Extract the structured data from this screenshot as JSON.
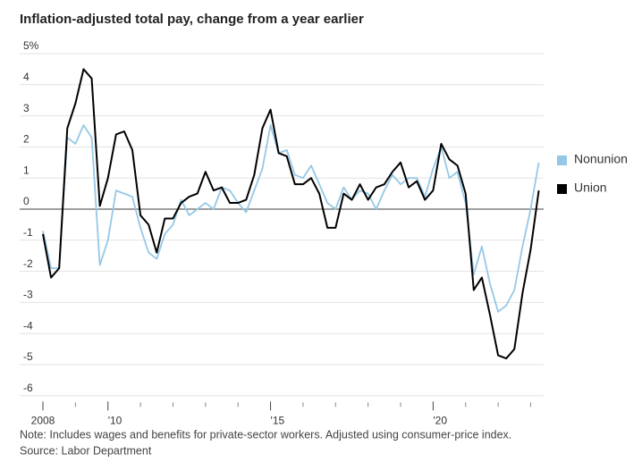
{
  "chart_data": {
    "type": "line",
    "title": "Inflation-adjusted total pay, change from a year earlier",
    "note": "Note: Includes wages and benefits for private-sector workers. Adjusted using consumer-price index.",
    "source": "Source: Labor Department",
    "x": [
      2008,
      2008.25,
      2008.5,
      2008.75,
      2009,
      2009.25,
      2009.5,
      2009.75,
      2010,
      2010.25,
      2010.5,
      2010.75,
      2011,
      2011.25,
      2011.5,
      2011.75,
      2012,
      2012.25,
      2012.5,
      2012.75,
      2013,
      2013.25,
      2013.5,
      2013.75,
      2014,
      2014.25,
      2014.5,
      2014.75,
      2015,
      2015.25,
      2015.5,
      2015.75,
      2016,
      2016.25,
      2016.5,
      2016.75,
      2017,
      2017.25,
      2017.5,
      2017.75,
      2018,
      2018.25,
      2018.5,
      2018.75,
      2019,
      2019.25,
      2019.5,
      2019.75,
      2020,
      2020.25,
      2020.5,
      2020.75,
      2021,
      2021.25,
      2021.5,
      2021.75,
      2022,
      2022.25,
      2022.5,
      2022.75,
      2023,
      2023.25
    ],
    "series": [
      {
        "name": "Nonunion",
        "color": "#95c8e6",
        "values": [
          -0.7,
          -1.9,
          -1.9,
          2.3,
          2.1,
          2.7,
          2.3,
          -1.8,
          -1.0,
          0.6,
          0.5,
          0.4,
          -0.6,
          -1.4,
          -1.6,
          -0.8,
          -0.5,
          0.3,
          -0.2,
          0.0,
          0.2,
          0.0,
          0.7,
          0.6,
          0.2,
          -0.1,
          0.6,
          1.3,
          2.7,
          1.8,
          1.9,
          1.1,
          1.0,
          1.4,
          0.8,
          0.2,
          0.0,
          0.7,
          0.3,
          0.6,
          0.5,
          0.0,
          0.6,
          1.1,
          0.8,
          1.0,
          1.0,
          0.4,
          1.3,
          2.0,
          1.0,
          1.2,
          0.2,
          -2.1,
          -1.2,
          -2.4,
          -3.3,
          -3.1,
          -2.6,
          -1.2,
          0.0,
          1.5
        ]
      },
      {
        "name": "Union",
        "color": "#000000",
        "values": [
          -0.8,
          -2.2,
          -1.9,
          2.6,
          3.4,
          4.5,
          4.2,
          0.1,
          1.0,
          2.4,
          2.5,
          1.9,
          -0.2,
          -0.5,
          -1.4,
          -0.3,
          -0.3,
          0.2,
          0.4,
          0.5,
          1.2,
          0.6,
          0.7,
          0.2,
          0.2,
          0.3,
          1.1,
          2.6,
          3.2,
          1.8,
          1.7,
          0.8,
          0.8,
          1.0,
          0.5,
          -0.6,
          -0.6,
          0.5,
          0.3,
          0.8,
          0.3,
          0.7,
          0.8,
          1.2,
          1.5,
          0.7,
          0.9,
          0.3,
          0.6,
          2.1,
          1.6,
          1.4,
          0.5,
          -2.6,
          -2.2,
          -3.4,
          -4.7,
          -4.8,
          -4.5,
          -2.7,
          -1.3,
          0.6
        ]
      }
    ],
    "xlim": [
      2008,
      2023.4
    ],
    "xticks": [
      {
        "value": 2008,
        "label": "2008"
      },
      {
        "value": 2010,
        "label": "'10"
      },
      {
        "value": 2015,
        "label": "'15"
      },
      {
        "value": 2020,
        "label": "'20"
      }
    ],
    "xminor_ticks": [
      2009,
      2011,
      2012,
      2013,
      2014,
      2016,
      2017,
      2018,
      2019,
      2021,
      2022,
      2023
    ],
    "ylim": [
      -6.3,
      5.3
    ],
    "yticks": [
      {
        "value": 5,
        "label": "5%"
      },
      4,
      3,
      2,
      1,
      0,
      -1,
      -2,
      -3,
      -4,
      -5,
      -6
    ],
    "grid": true,
    "legend": "right"
  }
}
